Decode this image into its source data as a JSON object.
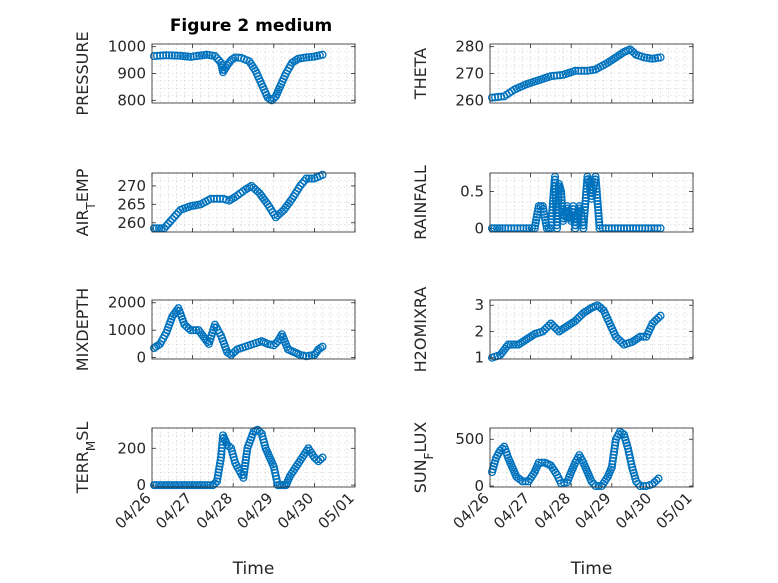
{
  "figure": {
    "title": "Figure 2 medium"
  },
  "styles": {
    "marker_color": "#0072BD"
  },
  "chart_data": [
    {
      "type": "scatter",
      "title": "Figure 2 medium",
      "ylabel": "PRESSURE",
      "ylabel_sub": "",
      "xlabel": "",
      "x_ticks": [
        "04/26",
        "04/27",
        "04/28",
        "04/29",
        "04/30",
        "05/01"
      ],
      "xlim": [
        0,
        5
      ],
      "y_ticks": [
        "800",
        "900",
        "1000"
      ],
      "ylim": [
        790,
        1010
      ],
      "yscale": "linear",
      "grid": true,
      "x_range": [
        0.05,
        4.2
      ],
      "points": [
        [
          0.05,
          965
        ],
        [
          0.35,
          968
        ],
        [
          0.7,
          966
        ],
        [
          0.95,
          962
        ],
        [
          1.1,
          965
        ],
        [
          1.35,
          970
        ],
        [
          1.55,
          965
        ],
        [
          1.7,
          940
        ],
        [
          1.75,
          905
        ],
        [
          1.85,
          930
        ],
        [
          1.95,
          950
        ],
        [
          2.05,
          960
        ],
        [
          2.2,
          958
        ],
        [
          2.4,
          945
        ],
        [
          2.55,
          910
        ],
        [
          2.7,
          860
        ],
        [
          2.85,
          810
        ],
        [
          2.95,
          800
        ],
        [
          3.05,
          815
        ],
        [
          3.15,
          850
        ],
        [
          3.3,
          900
        ],
        [
          3.45,
          940
        ],
        [
          3.6,
          955
        ],
        [
          3.8,
          960
        ],
        [
          4.0,
          963
        ],
        [
          4.2,
          970
        ]
      ]
    },
    {
      "type": "scatter",
      "title": "",
      "ylabel": "THETA",
      "ylabel_sub": "",
      "xlabel": "",
      "x_ticks": [
        "04/26",
        "04/27",
        "04/28",
        "04/29",
        "04/30",
        "05/01"
      ],
      "xlim": [
        0,
        5
      ],
      "y_ticks": [
        "260",
        "270",
        "280"
      ],
      "ylim": [
        259,
        281
      ],
      "yscale": "linear",
      "grid": true,
      "x_range": [
        0.05,
        4.2
      ],
      "points": [
        [
          0.05,
          261
        ],
        [
          0.35,
          261.5
        ],
        [
          0.6,
          264
        ],
        [
          0.9,
          266
        ],
        [
          1.2,
          267.5
        ],
        [
          1.5,
          269
        ],
        [
          1.8,
          269.5
        ],
        [
          2.1,
          271
        ],
        [
          2.4,
          271
        ],
        [
          2.6,
          271.5
        ],
        [
          2.9,
          274
        ],
        [
          3.1,
          276
        ],
        [
          3.3,
          278
        ],
        [
          3.45,
          279
        ],
        [
          3.6,
          277
        ],
        [
          3.8,
          276
        ],
        [
          4.0,
          275.5
        ],
        [
          4.2,
          276
        ]
      ]
    },
    {
      "type": "scatter",
      "title": "",
      "ylabel": "AIR",
      "ylabel_sub": "T",
      "ylabel_tail": "EMP",
      "xlabel": "",
      "x_ticks": [
        "04/26",
        "04/27",
        "04/28",
        "04/29",
        "04/30",
        "05/01"
      ],
      "xlim": [
        0,
        5
      ],
      "y_ticks": [
        "260",
        "265",
        "270"
      ],
      "ylim": [
        257.5,
        273.5
      ],
      "yscale": "linear",
      "grid": true,
      "x_range": [
        0.05,
        4.2
      ],
      "points": [
        [
          0.05,
          258.5
        ],
        [
          0.3,
          258.5
        ],
        [
          0.5,
          261
        ],
        [
          0.7,
          263.5
        ],
        [
          0.95,
          264.5
        ],
        [
          1.2,
          265
        ],
        [
          1.45,
          266.5
        ],
        [
          1.75,
          266.5
        ],
        [
          1.9,
          266
        ],
        [
          2.05,
          267
        ],
        [
          2.3,
          269
        ],
        [
          2.45,
          270
        ],
        [
          2.65,
          268
        ],
        [
          2.85,
          265
        ],
        [
          3.05,
          261.5
        ],
        [
          3.25,
          263.5
        ],
        [
          3.45,
          266.5
        ],
        [
          3.65,
          270
        ],
        [
          3.8,
          272
        ],
        [
          4.0,
          272
        ],
        [
          4.2,
          273
        ]
      ]
    },
    {
      "type": "scatter",
      "title": "",
      "ylabel": "RAINFALL",
      "ylabel_sub": "",
      "xlabel": "",
      "x_ticks": [
        "04/26",
        "04/27",
        "04/28",
        "04/29",
        "04/30",
        "05/01"
      ],
      "xlim": [
        0,
        5
      ],
      "y_ticks": [
        "0",
        "0.5"
      ],
      "ylim": [
        -0.05,
        0.75
      ],
      "yscale": "linear",
      "grid": true,
      "x_range": [
        0.05,
        4.2
      ],
      "points": [
        [
          0.05,
          0
        ],
        [
          0.3,
          0
        ],
        [
          0.6,
          0
        ],
        [
          0.9,
          0
        ],
        [
          1.1,
          0
        ],
        [
          1.2,
          0.3
        ],
        [
          1.3,
          0.3
        ],
        [
          1.4,
          0
        ],
        [
          1.5,
          0
        ],
        [
          1.6,
          0.7
        ],
        [
          1.65,
          0
        ],
        [
          1.7,
          0.6
        ],
        [
          1.75,
          0.5
        ],
        [
          1.8,
          0.1
        ],
        [
          1.85,
          0.2
        ],
        [
          1.9,
          0.3
        ],
        [
          1.95,
          0.2
        ],
        [
          2.0,
          0.1
        ],
        [
          2.05,
          0.3
        ],
        [
          2.1,
          0
        ],
        [
          2.15,
          0.2
        ],
        [
          2.2,
          0.3
        ],
        [
          2.25,
          0.2
        ],
        [
          2.3,
          0
        ],
        [
          2.4,
          0.7
        ],
        [
          2.45,
          0.6
        ],
        [
          2.5,
          0.4
        ],
        [
          2.6,
          0.7
        ],
        [
          2.7,
          0
        ],
        [
          3.0,
          0
        ],
        [
          3.3,
          0
        ],
        [
          3.6,
          0
        ],
        [
          3.9,
          0
        ],
        [
          4.2,
          0
        ]
      ]
    },
    {
      "type": "scatter",
      "title": "",
      "ylabel": "MIXDEPTH",
      "ylabel_sub": "",
      "xlabel": "",
      "x_ticks": [
        "04/26",
        "04/27",
        "04/28",
        "04/29",
        "04/30",
        "05/01"
      ],
      "xlim": [
        0,
        5
      ],
      "y_ticks": [
        "0",
        "1000",
        "2000"
      ],
      "ylim": [
        -50,
        2100
      ],
      "yscale": "linear",
      "grid": true,
      "x_range": [
        0.05,
        4.2
      ],
      "points": [
        [
          0.05,
          350
        ],
        [
          0.2,
          500
        ],
        [
          0.35,
          900
        ],
        [
          0.5,
          1500
        ],
        [
          0.65,
          1800
        ],
        [
          0.8,
          1200
        ],
        [
          0.95,
          1000
        ],
        [
          1.15,
          1000
        ],
        [
          1.3,
          700
        ],
        [
          1.4,
          500
        ],
        [
          1.55,
          1200
        ],
        [
          1.7,
          800
        ],
        [
          1.85,
          200
        ],
        [
          1.95,
          100
        ],
        [
          2.1,
          300
        ],
        [
          2.3,
          400
        ],
        [
          2.5,
          500
        ],
        [
          2.7,
          600
        ],
        [
          2.85,
          500
        ],
        [
          3.0,
          450
        ],
        [
          3.1,
          600
        ],
        [
          3.2,
          850
        ],
        [
          3.35,
          300
        ],
        [
          3.5,
          200
        ],
        [
          3.65,
          100
        ],
        [
          3.8,
          50
        ],
        [
          4.0,
          100
        ],
        [
          4.1,
          300
        ],
        [
          4.2,
          400
        ]
      ]
    },
    {
      "type": "scatter",
      "title": "",
      "ylabel": "H2OMIXRA",
      "ylabel_sub": "",
      "xlabel": "",
      "x_ticks": [
        "04/26",
        "04/27",
        "04/28",
        "04/29",
        "04/30",
        "05/01"
      ],
      "xlim": [
        0,
        5
      ],
      "y_ticks": [
        "1",
        "2",
        "3"
      ],
      "ylim": [
        0.95,
        3.2
      ],
      "yscale": "linear",
      "grid": true,
      "x_range": [
        0.05,
        4.2
      ],
      "points": [
        [
          0.05,
          1.0
        ],
        [
          0.25,
          1.1
        ],
        [
          0.45,
          1.5
        ],
        [
          0.7,
          1.5
        ],
        [
          0.9,
          1.7
        ],
        [
          1.1,
          1.9
        ],
        [
          1.3,
          2.0
        ],
        [
          1.5,
          2.3
        ],
        [
          1.7,
          2.0
        ],
        [
          1.9,
          2.2
        ],
        [
          2.1,
          2.4
        ],
        [
          2.3,
          2.7
        ],
        [
          2.5,
          2.9
        ],
        [
          2.65,
          3.0
        ],
        [
          2.8,
          2.8
        ],
        [
          2.95,
          2.3
        ],
        [
          3.1,
          1.8
        ],
        [
          3.3,
          1.5
        ],
        [
          3.5,
          1.6
        ],
        [
          3.7,
          1.8
        ],
        [
          3.85,
          1.8
        ],
        [
          4.0,
          2.3
        ],
        [
          4.2,
          2.6
        ]
      ]
    },
    {
      "type": "scatter",
      "title": "",
      "ylabel": "TERR",
      "ylabel_sub": "M",
      "ylabel_tail": "SL",
      "xlabel": "Time",
      "x_ticks": [
        "04/26",
        "04/27",
        "04/28",
        "04/29",
        "04/30",
        "05/01"
      ],
      "xlim": [
        0,
        5
      ],
      "y_ticks": [
        "0",
        "200"
      ],
      "ylim": [
        -10,
        310
      ],
      "yscale": "linear",
      "grid": true,
      "x_range": [
        0.05,
        4.2
      ],
      "points": [
        [
          0.05,
          0
        ],
        [
          0.3,
          0
        ],
        [
          0.55,
          0
        ],
        [
          0.8,
          0
        ],
        [
          1.05,
          0
        ],
        [
          1.3,
          0
        ],
        [
          1.5,
          0
        ],
        [
          1.6,
          20
        ],
        [
          1.7,
          150
        ],
        [
          1.75,
          270
        ],
        [
          1.85,
          220
        ],
        [
          1.95,
          200
        ],
        [
          2.05,
          120
        ],
        [
          2.15,
          80
        ],
        [
          2.25,
          40
        ],
        [
          2.35,
          200
        ],
        [
          2.5,
          290
        ],
        [
          2.6,
          300
        ],
        [
          2.7,
          280
        ],
        [
          2.8,
          200
        ],
        [
          2.9,
          150
        ],
        [
          3.0,
          100
        ],
        [
          3.1,
          0
        ],
        [
          3.2,
          0
        ],
        [
          3.3,
          0
        ],
        [
          3.4,
          50
        ],
        [
          3.55,
          100
        ],
        [
          3.7,
          150
        ],
        [
          3.85,
          200
        ],
        [
          4.0,
          150
        ],
        [
          4.1,
          130
        ],
        [
          4.2,
          150
        ]
      ]
    },
    {
      "type": "scatter",
      "title": "",
      "ylabel": "SUN",
      "ylabel_sub": "F",
      "ylabel_tail": "LUX",
      "xlabel": "Time",
      "x_ticks": [
        "04/26",
        "04/27",
        "04/28",
        "04/29",
        "04/30",
        "05/01"
      ],
      "xlim": [
        0,
        5
      ],
      "y_ticks": [
        "0",
        "500"
      ],
      "ylim": [
        -10,
        620
      ],
      "yscale": "linear",
      "grid": true,
      "x_range": [
        0.05,
        4.2
      ],
      "points": [
        [
          0.05,
          150
        ],
        [
          0.15,
          300
        ],
        [
          0.25,
          380
        ],
        [
          0.35,
          420
        ],
        [
          0.45,
          300
        ],
        [
          0.55,
          200
        ],
        [
          0.65,
          100
        ],
        [
          0.8,
          50
        ],
        [
          0.95,
          50
        ],
        [
          1.1,
          150
        ],
        [
          1.2,
          250
        ],
        [
          1.35,
          250
        ],
        [
          1.5,
          220
        ],
        [
          1.65,
          120
        ],
        [
          1.75,
          30
        ],
        [
          1.9,
          40
        ],
        [
          2.0,
          150
        ],
        [
          2.1,
          250
        ],
        [
          2.2,
          330
        ],
        [
          2.3,
          250
        ],
        [
          2.4,
          150
        ],
        [
          2.5,
          50
        ],
        [
          2.6,
          0
        ],
        [
          2.75,
          0
        ],
        [
          2.9,
          100
        ],
        [
          3.0,
          200
        ],
        [
          3.1,
          500
        ],
        [
          3.2,
          580
        ],
        [
          3.3,
          550
        ],
        [
          3.4,
          400
        ],
        [
          3.5,
          200
        ],
        [
          3.6,
          50
        ],
        [
          3.7,
          0
        ],
        [
          3.85,
          0
        ],
        [
          4.0,
          20
        ],
        [
          4.15,
          80
        ]
      ]
    }
  ]
}
